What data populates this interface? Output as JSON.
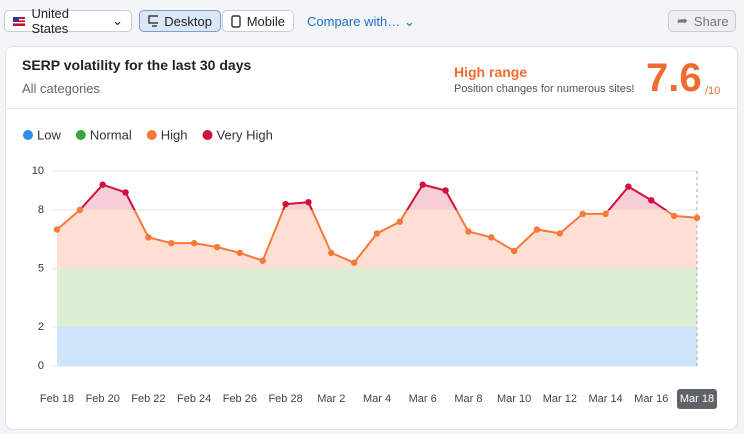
{
  "toolbar": {
    "country": "United States",
    "desktop": "Desktop",
    "mobile": "Mobile",
    "compare": "Compare with…",
    "share": "Share"
  },
  "header": {
    "title": "SERP volatility for the last 30 days",
    "subtitle": "All categories",
    "status": "High range",
    "status_note": "Position changes for numerous sites!",
    "score": 7.6,
    "score_max": "/10"
  },
  "chart_data": {
    "type": "area",
    "ranges": [
      {
        "name": "Low",
        "color": "#2e8ff0",
        "fill": "#cde5fb",
        "from": 0,
        "to": 2
      },
      {
        "name": "Normal",
        "color": "#3aa53a",
        "fill": "#dcefd5",
        "from": 2,
        "to": 5
      },
      {
        "name": "High",
        "color": "#f5793b",
        "fill": "#fde0d3",
        "from": 5,
        "to": 8
      },
      {
        "name": "Very High",
        "color": "#d1103c",
        "fill": "#f7cdd8",
        "from": 8,
        "to": 10
      }
    ],
    "categories": [
      "Feb 18",
      null,
      "Feb 20",
      null,
      "Feb 22",
      null,
      "Feb 24",
      null,
      "Feb 26",
      null,
      "Feb 28",
      null,
      "Mar 2",
      null,
      "Mar 4",
      null,
      "Mar 6",
      null,
      "Mar 8",
      null,
      "Mar 10",
      null,
      "Mar 12",
      null,
      "Mar 14",
      null,
      "Mar 16",
      null,
      "Mar 18"
    ],
    "values": [
      7.0,
      8.0,
      9.3,
      8.9,
      6.6,
      6.3,
      6.3,
      6.1,
      5.8,
      5.4,
      8.3,
      8.4,
      5.8,
      5.3,
      6.8,
      7.4,
      9.3,
      9.0,
      6.9,
      6.6,
      5.9,
      7.0,
      6.8,
      7.8,
      7.8,
      9.2,
      8.5,
      7.7,
      7.6
    ],
    "ylim": [
      0,
      10
    ],
    "yticks": [
      0,
      2,
      5,
      8,
      10
    ],
    "grid": true
  }
}
